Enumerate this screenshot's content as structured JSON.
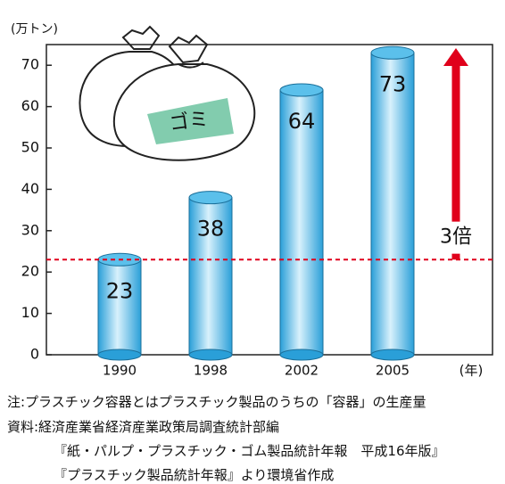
{
  "chart_data": {
    "type": "bar",
    "y_unit": "(万トン)",
    "x_unit": "(年)",
    "categories": [
      "1990",
      "1998",
      "2002",
      "2005"
    ],
    "values": [
      23,
      38,
      64,
      73
    ],
    "color": "#5bc0eb",
    "ylim": [
      0,
      75
    ],
    "yticks": [
      0,
      10,
      20,
      30,
      40,
      50,
      60,
      70
    ],
    "reference_line": {
      "value": 23,
      "color": "#e0001b"
    },
    "arrow_label": "3倍",
    "illustration_label": "ゴミ"
  },
  "notes": [
    "注:プラスチック容器とはプラスチック製品のうちの「容器」の生産量",
    "資料:経済産業省経済産業政策局調査統計部編",
    "『紙・パルプ・プラスチック・ゴム製品統計年報　平成16年版』",
    "『プラスチック製品統計年報』より環境省作成"
  ]
}
